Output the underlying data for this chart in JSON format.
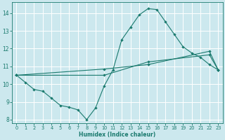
{
  "xlabel": "Humidex (Indice chaleur)",
  "background_color": "#cce8ee",
  "grid_color": "#ffffff",
  "line_color": "#1a7a6e",
  "xlim": [
    -0.5,
    23.5
  ],
  "ylim": [
    7.8,
    14.6
  ],
  "yticks": [
    8,
    9,
    10,
    11,
    12,
    13,
    14
  ],
  "xticks": [
    0,
    1,
    2,
    3,
    4,
    5,
    6,
    7,
    8,
    9,
    10,
    11,
    12,
    13,
    14,
    15,
    16,
    17,
    18,
    19,
    20,
    21,
    22,
    23
  ],
  "series1_x": [
    0,
    1,
    2,
    3,
    4,
    5,
    6,
    7,
    8,
    9,
    10,
    11,
    12,
    13,
    14,
    15,
    16,
    17,
    18,
    19,
    20,
    21,
    22,
    23
  ],
  "series1_y": [
    10.5,
    10.1,
    9.7,
    9.6,
    9.2,
    8.8,
    8.7,
    8.55,
    8.0,
    8.65,
    9.9,
    10.8,
    12.5,
    13.2,
    13.9,
    14.25,
    14.2,
    13.5,
    12.8,
    12.1,
    11.75,
    11.5,
    11.1,
    10.8
  ],
  "series2_x": [
    0,
    10,
    15,
    22,
    23
  ],
  "series2_y": [
    10.5,
    10.5,
    11.25,
    11.65,
    10.8
  ],
  "series3_x": [
    0,
    10,
    15,
    22,
    23
  ],
  "series3_y": [
    10.5,
    10.85,
    11.1,
    11.85,
    10.8
  ]
}
